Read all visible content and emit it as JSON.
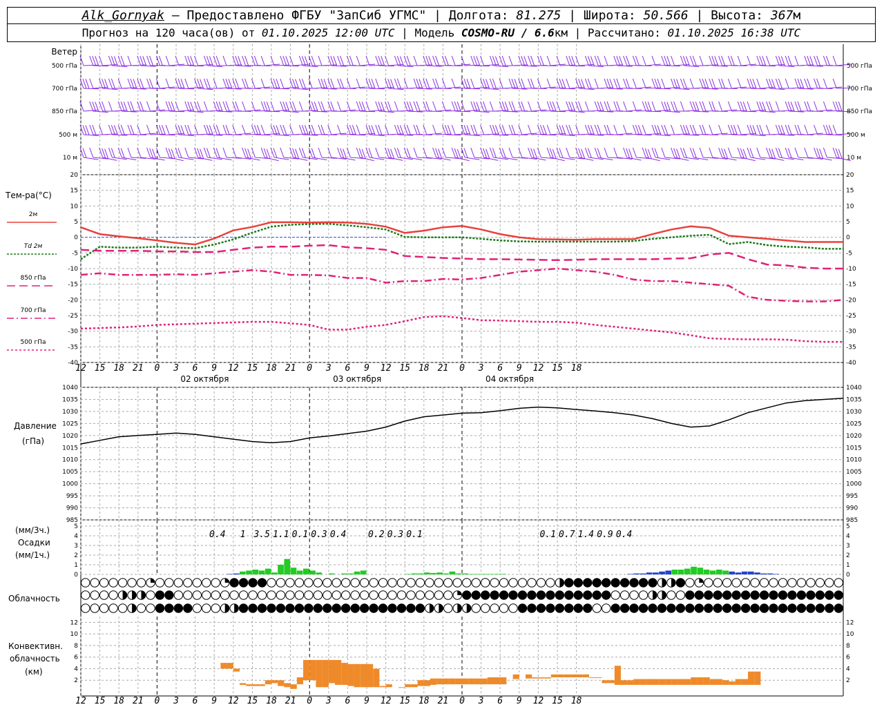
{
  "header": {
    "station": "Alk_Gornyak",
    "provider": "— Предоставлено ФГБУ \"ЗапСиб УГМС\"",
    "lon_label": "Долгота:",
    "lon": "81.275",
    "lat_label": "Широта:",
    "lat": "50.566",
    "alt_label": "Высота:",
    "alt": "367",
    "alt_unit": "м",
    "forecast_prefix": "Прогноз на 120 часа(ов) от",
    "forecast_start": "01.10.2025 12:00 UTC",
    "model_label": "Модель",
    "model": "COSMO-RU / 6.6",
    "model_unit": "км",
    "computed_label": "Рассчитано:",
    "computed": "01.10.2025 16:38 UTC"
  },
  "time_axis": {
    "hour_labels": [
      "12",
      "15",
      "18",
      "21",
      "0",
      "3",
      "6",
      "9",
      "12",
      "15",
      "18",
      "21",
      "0",
      "3",
      "6",
      "9",
      "12",
      "15",
      "18",
      "21",
      "0",
      "3",
      "6",
      "9",
      "12",
      "15",
      "18"
    ],
    "day_labels": [
      "02 октября",
      "03 октября",
      "04 октября"
    ]
  },
  "panels": {
    "wind": {
      "title": "Ветер",
      "levels": [
        "500 гПа",
        "700 гПа",
        "850 гПа",
        "500 м",
        "10  м"
      ],
      "right_levels": [
        "500 гПа",
        "700 гПа",
        "850 гПа",
        "500 м",
        "10  м"
      ],
      "color": "#8a2be2"
    },
    "temperature": {
      "title": "Тем-ра(°C)",
      "legend": [
        {
          "label": "2м",
          "color": "#e8413c",
          "dash": "none"
        },
        {
          "label": "Td  2м",
          "color": "#1a7a1a",
          "dash": "3,2"
        },
        {
          "label": "850 гПа",
          "color": "#e0207a",
          "dash": "12,6"
        },
        {
          "label": "700 гПа",
          "color": "#e0207a",
          "dash": "10,4,2,4"
        },
        {
          "label": "500 гПа",
          "color": "#e0207a",
          "dash": "3,3"
        }
      ]
    },
    "pressure": {
      "title": "Давление",
      "unit": "(гПа)"
    },
    "precip": {
      "unit3h": "(мм/3ч.)",
      "title": "Осадки",
      "unit1h": "(мм/1ч.)",
      "totals": [
        "0.4",
        "1",
        "3.5",
        "1.1",
        "0.1",
        "0.3",
        "0.4",
        "0.2",
        "0.3",
        "0.1",
        "0.1",
        "0.7",
        "1.4",
        "0.9",
        "0.4"
      ]
    },
    "cloud": {
      "title": "Облачность"
    },
    "convective": {
      "title1": "Конвективн.",
      "title2": "облачность",
      "unit": "(км)"
    }
  },
  "colors": {
    "wind": "#8a2be2",
    "t2m": "#e8413c",
    "td": "#1a7a1a",
    "upper": "#e0207a",
    "rain": "#22cc22",
    "rain_blue": "#2244cc",
    "convective": "#ef8a2a",
    "zero_line": "#3355dd"
  },
  "chart_data": [
    {
      "type": "line",
      "title": "Тем-ра(°C)",
      "x_hours": [
        0,
        3,
        6,
        9,
        12,
        15,
        18,
        21,
        24,
        27,
        30,
        33,
        36,
        39,
        42,
        45,
        48,
        51,
        54,
        57,
        60,
        63,
        66,
        69,
        72,
        75,
        78,
        81,
        84,
        87,
        90,
        93,
        96,
        99,
        102,
        105,
        108,
        111,
        114,
        117,
        120
      ],
      "ylim": [
        -40,
        20
      ],
      "yticks": [
        20,
        15,
        10,
        5,
        0,
        -5,
        -10,
        -15,
        -20,
        -25,
        -30,
        -35,
        -40
      ],
      "series": [
        {
          "name": "2м",
          "values": [
            3.2,
            1,
            0.3,
            -0.3,
            -1,
            -1.8,
            -2.3,
            -0.4,
            2.2,
            3.3,
            4.8,
            4.8,
            4.7,
            4.8,
            4.7,
            4.3,
            3.4,
            1.4,
            2.1,
            3.2,
            3.6,
            2.5,
            1,
            0,
            -0.6,
            -0.7,
            -0.8,
            -0.6,
            -0.6,
            -0.6,
            1,
            2.5,
            3.5,
            3,
            0.5,
            0,
            -0.5,
            -1,
            -1.5,
            -1.5,
            -1.5
          ]
        },
        {
          "name": "Td  2м",
          "values": [
            -7,
            -3,
            -3.3,
            -3.3,
            -3,
            -3.3,
            -3.5,
            -2.3,
            -0.7,
            1.5,
            3.4,
            4,
            4.2,
            4.3,
            3.8,
            3.2,
            2.5,
            0.1,
            0,
            0,
            0,
            -0.5,
            -1,
            -1.3,
            -1.4,
            -1.4,
            -1.4,
            -1.4,
            -1.4,
            -1.2,
            -0.5,
            0,
            0.5,
            0.8,
            -2.2,
            -1.5,
            -2.5,
            -3,
            -3.2,
            -3.7,
            -3.7
          ]
        },
        {
          "name": "850 гПа",
          "values": [
            -4,
            -4.3,
            -4.3,
            -4.3,
            -4.5,
            -4.5,
            -4.7,
            -4.7,
            -4,
            -3.3,
            -3,
            -3,
            -2.7,
            -2.5,
            -3.2,
            -3.5,
            -4,
            -6,
            -6.3,
            -6.6,
            -6.8,
            -7,
            -7,
            -7.1,
            -7.2,
            -7.3,
            -7.2,
            -7,
            -7,
            -7,
            -7,
            -6.8,
            -6.7,
            -5.5,
            -5,
            -7,
            -8.7,
            -9,
            -9.7,
            -10,
            -10
          ]
        },
        {
          "name": "700 гПа",
          "values": [
            -12,
            -11.5,
            -12,
            -12,
            -12,
            -11.8,
            -12,
            -11.5,
            -11,
            -10.5,
            -11,
            -12,
            -12,
            -12.2,
            -13,
            -13,
            -14.5,
            -14,
            -14,
            -13.3,
            -13.5,
            -13,
            -12,
            -11,
            -10.5,
            -10,
            -10.5,
            -11,
            -12,
            -13.5,
            -14,
            -14,
            -14.5,
            -15,
            -15.5,
            -19,
            -20,
            -20.3,
            -20.5,
            -20.5,
            -20
          ]
        },
        {
          "name": "500 гПа",
          "values": [
            -29.2,
            -29,
            -28.8,
            -28.5,
            -28,
            -27.8,
            -27.6,
            -27.4,
            -27.2,
            -27,
            -27,
            -27.5,
            -28,
            -29.5,
            -29.5,
            -28.6,
            -28,
            -26.8,
            -25.5,
            -25.2,
            -25.8,
            -26.5,
            -26.6,
            -26.8,
            -27,
            -27,
            -27.3,
            -28,
            -28.6,
            -29.2,
            -29.8,
            -30.4,
            -31.3,
            -32.3,
            -32.5,
            -32.6,
            -32.6,
            -32.7,
            -33.2,
            -33.4,
            -33.4
          ]
        }
      ]
    },
    {
      "type": "line",
      "title": "Давление",
      "ylabel": "(гПа)",
      "x_hours": [
        0,
        3,
        6,
        9,
        12,
        15,
        18,
        21,
        24,
        27,
        30,
        33,
        36,
        39,
        42,
        45,
        48,
        51,
        54,
        57,
        60,
        63,
        66,
        69,
        72,
        75,
        78,
        81,
        84,
        87,
        90,
        93,
        96,
        99,
        102,
        105,
        108,
        111,
        114,
        117,
        120
      ],
      "ylim": [
        985,
        1040
      ],
      "yticks": [
        1040,
        1035,
        1030,
        1025,
        1020,
        1015,
        1010,
        1005,
        1000,
        995,
        990,
        985
      ],
      "series": [
        {
          "name": "Давление",
          "values": [
            1016.5,
            1018,
            1019.5,
            1020,
            1020.5,
            1021,
            1020.5,
            1019.5,
            1018.5,
            1017.5,
            1017,
            1017.5,
            1019,
            1019.8,
            1020.8,
            1021.8,
            1023.5,
            1026,
            1027.8,
            1028.5,
            1029.3,
            1029.5,
            1030.3,
            1031.3,
            1031.8,
            1031.5,
            1030.8,
            1030.2,
            1029.5,
            1028.5,
            1027,
            1025,
            1023.5,
            1024,
            1026.5,
            1029.5,
            1031.5,
            1033.5,
            1034.5,
            1035,
            1035.5
          ]
        }
      ]
    },
    {
      "type": "bar",
      "title": "Осадки",
      "ylabel": "(мм/1ч.)",
      "ylim": [
        0,
        5
      ],
      "yticks": [
        5,
        4,
        3,
        2,
        1,
        0
      ],
      "x_hours": [
        23,
        24,
        25,
        26,
        27,
        28,
        29,
        30,
        31,
        32,
        33,
        34,
        35,
        36,
        37,
        39,
        41,
        42,
        43,
        44,
        51,
        52,
        53,
        54,
        55,
        56,
        57,
        58,
        59,
        60,
        61,
        62,
        63,
        64,
        65,
        66,
        86,
        87,
        88,
        89,
        90,
        91,
        92,
        93,
        94,
        95,
        96,
        97,
        98,
        99,
        100,
        101,
        102,
        103,
        104,
        105,
        106,
        107,
        108,
        109
      ],
      "values": [
        0.05,
        0.1,
        0.3,
        0.4,
        0.5,
        0.4,
        0.6,
        0.2,
        1.0,
        1.6,
        0.7,
        0.4,
        0.6,
        0.4,
        0.2,
        0.1,
        0.1,
        0.1,
        0.3,
        0.4,
        0.05,
        0.1,
        0.1,
        0.2,
        0.15,
        0.2,
        0.1,
        0.3,
        0.1,
        0.1,
        0.05,
        0.05,
        0.05,
        0.05,
        0.05,
        0.05,
        0.05,
        0.1,
        0.1,
        0.2,
        0.2,
        0.3,
        0.4,
        0.5,
        0.5,
        0.6,
        0.8,
        0.7,
        0.5,
        0.4,
        0.5,
        0.4,
        0.3,
        0.2,
        0.3,
        0.3,
        0.2,
        0.1,
        0.1,
        0.05
      ],
      "colors": [
        "b",
        "b",
        "g",
        "g",
        "g",
        "g",
        "g",
        "g",
        "g",
        "g",
        "g",
        "g",
        "g",
        "g",
        "g",
        "g",
        "g",
        "g",
        "g",
        "g",
        "g",
        "g",
        "g",
        "g",
        "g",
        "g",
        "g",
        "g",
        "g",
        "g",
        "g",
        "g",
        "g",
        "g",
        "g",
        "g",
        "b",
        "b",
        "b",
        "b",
        "b",
        "b",
        "b",
        "g",
        "g",
        "g",
        "g",
        "g",
        "g",
        "g",
        "g",
        "g",
        "b",
        "b",
        "b",
        "b",
        "b",
        "b",
        "b",
        "b"
      ]
    },
    {
      "type": "bar",
      "title": "Конвективн. облачность",
      "ylabel": "(км)",
      "ylim": [
        0,
        13
      ],
      "yticks": [
        12,
        10,
        8,
        6,
        4,
        2
      ],
      "x_hours": [
        22,
        23,
        24,
        25,
        26,
        27,
        28,
        29,
        30,
        31,
        32,
        33,
        34,
        35,
        36,
        37,
        38,
        39,
        40,
        41,
        42,
        43,
        44,
        45,
        46,
        47,
        48,
        50,
        51,
        52,
        53,
        54,
        55,
        56,
        57,
        58,
        59,
        60,
        61,
        62,
        63,
        64,
        65,
        66,
        68,
        70,
        71,
        72,
        73,
        74,
        75,
        76,
        77,
        78,
        79,
        80,
        81,
        82,
        83,
        84,
        85,
        86,
        87,
        88,
        89,
        90,
        91,
        92,
        93,
        94,
        95,
        96,
        97,
        98,
        99,
        100,
        101,
        102,
        103,
        104,
        105,
        106
      ],
      "bases": [
        4,
        4,
        3.5,
        1.2,
        1,
        1,
        1,
        1.3,
        1.5,
        1,
        0.8,
        0.5,
        1.3,
        2,
        2,
        0.8,
        0.8,
        1.5,
        1.2,
        1.2,
        1,
        0.8,
        0.8,
        0.8,
        0.8,
        0.8,
        0.8,
        0.8,
        0.8,
        0.8,
        1,
        1,
        1.2,
        1.3,
        1.3,
        1.3,
        1.3,
        1.3,
        1.3,
        1.3,
        1.3,
        1.3,
        1.3,
        1.3,
        2.2,
        2.3,
        2.3,
        2.3,
        2.3,
        2.5,
        2.5,
        2.5,
        2.5,
        2.5,
        2.5,
        2.5,
        2.5,
        1.5,
        1.5,
        1.2,
        1.2,
        1.2,
        1.2,
        1.2,
        1.2,
        1.2,
        1.2,
        1.2,
        1.2,
        1.2,
        1.2,
        1.2,
        1.2,
        1.2,
        1.2,
        1.2,
        1.2,
        1.2,
        1.2,
        1.2,
        1.2,
        1.2
      ],
      "tops": [
        5,
        5,
        4,
        1.5,
        1.3,
        1.3,
        1.3,
        2,
        2,
        2,
        1.5,
        1.3,
        2.5,
        5.5,
        5.5,
        5.5,
        5.5,
        5.5,
        5.5,
        5,
        4.8,
        4.8,
        4.8,
        4.8,
        4,
        1,
        1.3,
        0.8,
        1.3,
        1.3,
        2,
        2,
        2.3,
        2.3,
        2.3,
        2.3,
        2.3,
        2.3,
        2.3,
        2.3,
        2.3,
        2.5,
        2.5,
        2.5,
        3,
        3,
        2.5,
        2.5,
        2.5,
        3,
        3,
        3,
        3,
        3,
        3,
        2.5,
        2.5,
        2,
        2,
        4.5,
        2,
        2,
        2.2,
        2.2,
        2.2,
        2.2,
        2.2,
        2.2,
        2.2,
        2.2,
        2.2,
        2.5,
        2.5,
        2.5,
        2.2,
        2.2,
        2,
        1.8,
        2.2,
        2.2,
        3.5,
        3.5
      ]
    }
  ]
}
